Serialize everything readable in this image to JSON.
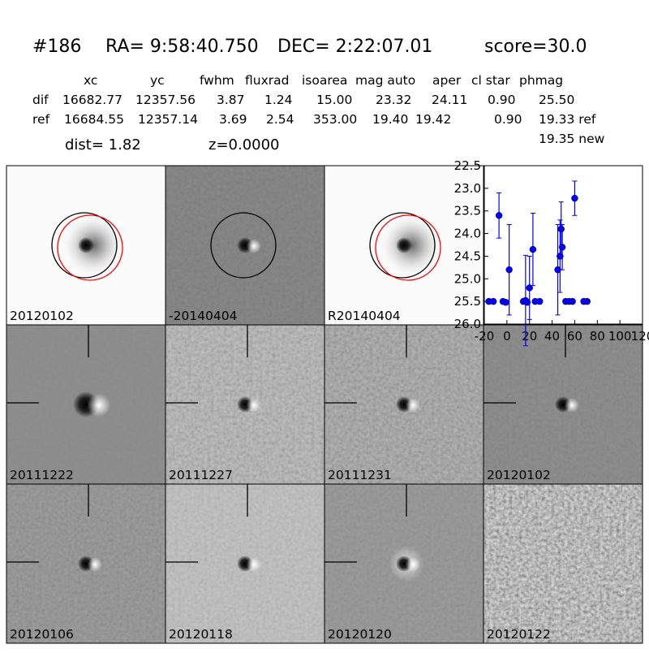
{
  "header": {
    "id": "#186",
    "ra": "RA= 9:58:40.750",
    "dec": "DEC= 2:22:07.01",
    "score": "score=30.0"
  },
  "table": {
    "columns": [
      "xc",
      "yc",
      "fwhm",
      "fluxrad",
      "isoarea",
      "mag auto",
      "aper",
      "cl star",
      "phmag"
    ],
    "rows": [
      {
        "label": "dif",
        "cells": [
          "16682.77",
          "12357.56",
          "3.87",
          "1.24",
          "15.00",
          "23.32",
          "24.11",
          "0.90",
          "25.50"
        ]
      },
      {
        "label": "ref",
        "cells": [
          "16684.55",
          "12357.14",
          "3.69",
          "2.54",
          "353.00",
          "19.40",
          "19.42",
          "0.90",
          "19.33 ref"
        ]
      }
    ],
    "extra": "19.35 new"
  },
  "distance": "dist=  1.82",
  "redshift": "z=0.0000",
  "stamps": [
    {
      "label": "20120102"
    },
    {
      "label": "-20140404"
    },
    {
      "label": "R20140404"
    },
    {
      "label": "20111222"
    },
    {
      "label": "20111227"
    },
    {
      "label": "20111231"
    },
    {
      "label": "20120102",
      "label_color": "#ff0000"
    },
    {
      "label": "20120106"
    },
    {
      "label": "20120118"
    },
    {
      "label": "20120120"
    },
    {
      "label": "20120122"
    }
  ],
  "chart_data": {
    "type": "scatter",
    "xlim": [
      -20,
      120
    ],
    "ylim": [
      26.0,
      22.5
    ],
    "xticks": [
      -20,
      0,
      20,
      40,
      60,
      80,
      100,
      120
    ],
    "yticks": [
      22.5,
      {
        "value": 23.0,
        "label": "23.0"
      },
      23.5,
      {
        "value": 24.0,
        "label": "24.0"
      },
      24.5,
      {
        "value": 25.0,
        "label": "25.0"
      },
      25.5,
      {
        "value": 26.0,
        "label": "26.0"
      }
    ],
    "series": [
      {
        "color": "#0000ff",
        "x": [
          -16,
          -12,
          -7,
          -3.5,
          -1,
          2,
          14.5,
          16.5,
          18,
          20,
          23,
          25,
          29,
          45,
          47,
          48,
          49,
          52,
          55,
          58,
          60,
          68,
          71
        ],
        "values": [
          25.5,
          25.5,
          23.6,
          25.5,
          25.52,
          24.8,
          25.5,
          25.48,
          25.52,
          25.2,
          24.35,
          25.5,
          25.5,
          24.8,
          24.5,
          23.9,
          24.3,
          25.5,
          25.5,
          25.5,
          23.22,
          25.5,
          25.5
        ],
        "errors": [
          0.05,
          0.05,
          0.5,
          0.05,
          0.05,
          1.0,
          0.05,
          1.0,
          0.05,
          0.7,
          0.8,
          0.05,
          0.05,
          1.0,
          0.8,
          0.6,
          0.5,
          0.05,
          0.05,
          0.05,
          0.38,
          0.05,
          0.05
        ]
      }
    ]
  }
}
